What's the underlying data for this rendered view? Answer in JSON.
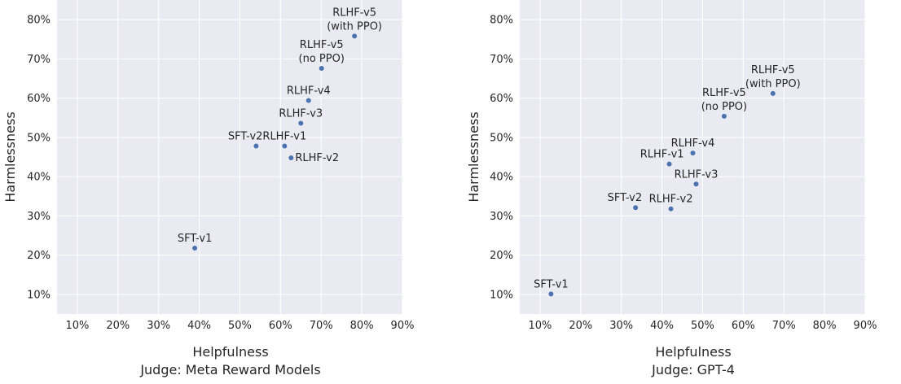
{
  "chart_data": [
    {
      "type": "scatter",
      "xlabel": "Helpfulness",
      "subtitle": "Judge: Meta Reward Models",
      "ylabel": "Harmlessness",
      "xlim": [
        5,
        90
      ],
      "ylim": [
        5,
        85
      ],
      "x_ticks": [
        10,
        20,
        30,
        40,
        50,
        60,
        70,
        80,
        90
      ],
      "y_ticks": [
        10,
        20,
        30,
        40,
        50,
        60,
        70,
        80
      ],
      "x_tick_labels": [
        "10%",
        "20%",
        "30%",
        "40%",
        "50%",
        "60%",
        "70%",
        "80%",
        "90%"
      ],
      "y_tick_labels": [
        "10%",
        "20%",
        "30%",
        "40%",
        "50%",
        "60%",
        "70%",
        "80%"
      ],
      "grid": true,
      "point_color": "#4c72b0",
      "points": [
        {
          "label": [
            "SFT-v1"
          ],
          "x": 38.9,
          "y": 21.8,
          "anchor": "above"
        },
        {
          "label": [
            "SFT-v2"
          ],
          "x": 54.0,
          "y": 47.8,
          "anchor": "above-left"
        },
        {
          "label": [
            "RLHF-v1"
          ],
          "x": 61.0,
          "y": 47.8,
          "anchor": "above"
        },
        {
          "label": [
            "RLHF-v2"
          ],
          "x": 62.6,
          "y": 44.8,
          "anchor": "above-right"
        },
        {
          "label": [
            "RLHF-v3"
          ],
          "x": 65.0,
          "y": 53.6,
          "anchor": "above"
        },
        {
          "label": [
            "RLHF-v4"
          ],
          "x": 66.9,
          "y": 59.4,
          "anchor": "above"
        },
        {
          "label": [
            "RLHF-v5",
            "(no PPO)"
          ],
          "x": 70.1,
          "y": 67.6,
          "anchor": "above"
        },
        {
          "label": [
            "RLHF-v5",
            "(with PPO)"
          ],
          "x": 78.2,
          "y": 75.8,
          "anchor": "above"
        }
      ]
    },
    {
      "type": "scatter",
      "xlabel": "Helpfulness",
      "subtitle": "Judge: GPT-4",
      "ylabel": "Harmlessness",
      "xlim": [
        5,
        90
      ],
      "ylim": [
        5,
        85
      ],
      "x_ticks": [
        10,
        20,
        30,
        40,
        50,
        60,
        70,
        80,
        90
      ],
      "y_ticks": [
        10,
        20,
        30,
        40,
        50,
        60,
        70,
        80
      ],
      "x_tick_labels": [
        "10%",
        "20%",
        "30%",
        "40%",
        "50%",
        "60%",
        "70%",
        "80%",
        "90%"
      ],
      "y_tick_labels": [
        "10%",
        "20%",
        "30%",
        "40%",
        "50%",
        "60%",
        "70%",
        "80%"
      ],
      "grid": true,
      "point_color": "#4c72b0",
      "points": [
        {
          "label": [
            "SFT-v1"
          ],
          "x": 12.7,
          "y": 10.1,
          "anchor": "above"
        },
        {
          "label": [
            "SFT-v2"
          ],
          "x": 33.5,
          "y": 32.1,
          "anchor": "above-left"
        },
        {
          "label": [
            "RLHF-v2"
          ],
          "x": 42.2,
          "y": 31.8,
          "anchor": "above"
        },
        {
          "label": [
            "RLHF-v1"
          ],
          "x": 41.8,
          "y": 43.2,
          "anchor": "left"
        },
        {
          "label": [
            "RLHF-v3"
          ],
          "x": 48.4,
          "y": 38.1,
          "anchor": "above"
        },
        {
          "label": [
            "RLHF-v4"
          ],
          "x": 47.6,
          "y": 46.0,
          "anchor": "above"
        },
        {
          "label": [
            "RLHF-v5",
            "(no PPO)"
          ],
          "x": 55.3,
          "y": 55.4,
          "anchor": "above"
        },
        {
          "label": [
            "RLHF-v5",
            "(with PPO)"
          ],
          "x": 67.3,
          "y": 61.2,
          "anchor": "above"
        }
      ]
    }
  ]
}
